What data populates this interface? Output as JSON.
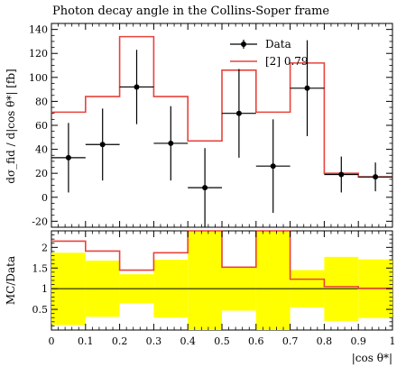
{
  "chart_data": [
    {
      "type": "histogram",
      "title": "Photon decay angle in the Collins-Soper frame",
      "ylabel": "dσ_fid / d|cos θ*| [fb]",
      "xlim": [
        0,
        1.0
      ],
      "ylim": [
        -25,
        145
      ],
      "yticks": [
        -20,
        0,
        20,
        40,
        60,
        80,
        100,
        120,
        140
      ],
      "legend_position": "top-right",
      "bin_edges": [
        0,
        0.1,
        0.2,
        0.3,
        0.4,
        0.5,
        0.6,
        0.7,
        0.8,
        0.9,
        1.0
      ],
      "series": [
        {
          "name": "Data",
          "style": "points-with-errors",
          "color": "#000000",
          "x": [
            0.05,
            0.15,
            0.25,
            0.35,
            0.45,
            0.55,
            0.65,
            0.75,
            0.85,
            0.95
          ],
          "values": [
            33,
            44,
            92,
            45,
            8,
            70,
            26,
            91,
            19,
            17
          ],
          "yerr_low": [
            29,
            30,
            31,
            31,
            33,
            37,
            39,
            40,
            15,
            12
          ],
          "yerr_high": [
            29,
            30,
            31,
            31,
            33,
            37,
            39,
            40,
            15,
            12
          ]
        },
        {
          "name": "[2] 0.79",
          "style": "step",
          "color": "#e8433c",
          "values": [
            71,
            84,
            134,
            84,
            47,
            106,
            71,
            112,
            20,
            17
          ]
        }
      ]
    },
    {
      "type": "ratio",
      "ylabel": "MC/Data",
      "xlabel": "|cos θ*|",
      "xlim": [
        0,
        1.0
      ],
      "ylim": [
        0,
        2.4
      ],
      "yticks": [
        0.5,
        1,
        1.5,
        2
      ],
      "xticks": [
        0,
        0.1,
        0.2,
        0.3,
        0.4,
        0.5,
        0.6,
        0.7,
        0.8,
        0.9,
        1.0
      ],
      "bin_edges": [
        0,
        0.1,
        0.2,
        0.3,
        0.4,
        0.5,
        0.6,
        0.7,
        0.8,
        0.9,
        1.0
      ],
      "band_color": "#ffff00",
      "band_low": [
        0.12,
        0.32,
        0.65,
        0.3,
        0.0,
        0.47,
        0.0,
        0.55,
        0.22,
        0.29
      ],
      "band_high": [
        1.87,
        1.68,
        1.35,
        1.7,
        2.4,
        1.53,
        2.4,
        1.45,
        1.77,
        1.71
      ],
      "ratio_values": [
        2.15,
        1.91,
        1.45,
        1.87,
        2.4,
        1.52,
        2.4,
        1.23,
        1.05,
        1.01
      ],
      "reference_line": 1.0
    }
  ]
}
